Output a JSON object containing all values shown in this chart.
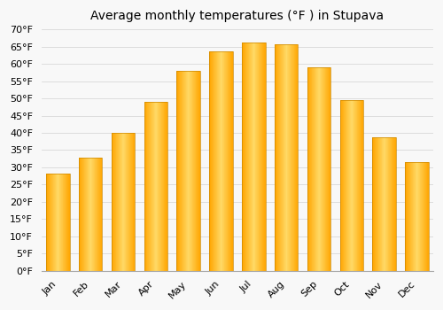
{
  "title": "Average monthly temperatures (°F ) in Stupava",
  "months": [
    "Jan",
    "Feb",
    "Mar",
    "Apr",
    "May",
    "Jun",
    "Jul",
    "Aug",
    "Sep",
    "Oct",
    "Nov",
    "Dec"
  ],
  "values": [
    28.2,
    32.9,
    40.1,
    48.9,
    57.9,
    63.7,
    66.2,
    65.8,
    59.0,
    49.5,
    38.7,
    31.5
  ],
  "bar_color_light": "#FFD966",
  "bar_color_dark": "#FFA500",
  "bar_edge_color": "#CC8800",
  "ylim": [
    0,
    70
  ],
  "ytick_step": 5,
  "background_color": "#f8f8f8",
  "plot_bg_color": "#f8f8f8",
  "grid_color": "#dddddd",
  "title_fontsize": 10,
  "tick_fontsize": 8
}
